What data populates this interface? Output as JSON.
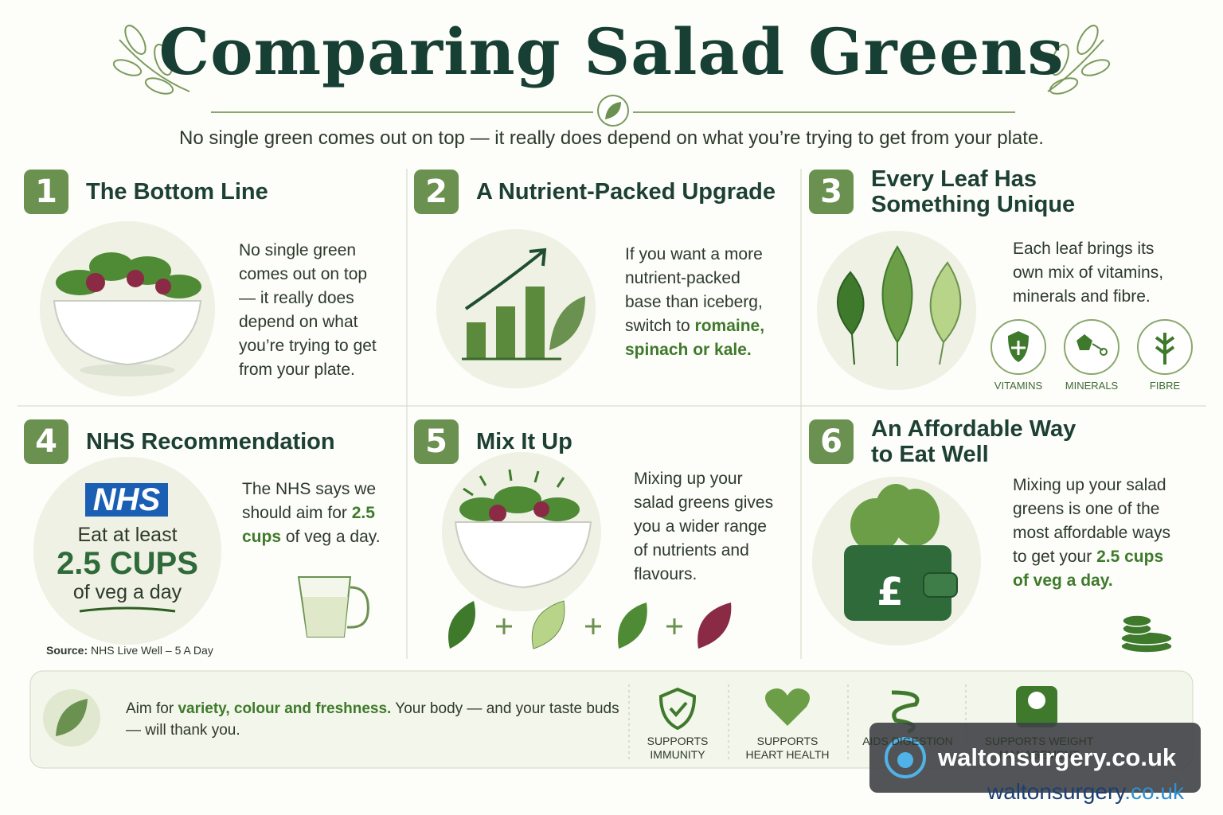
{
  "header": {
    "title": "Comparing Salad Greens",
    "subtitle": "No single green comes out on top — it really does depend on what you’re trying to get from your plate."
  },
  "sections": [
    {
      "number": "1",
      "heading": "The Bottom Line",
      "body": [
        {
          "text": "No single green comes out on top — it really does depend on what you’re trying to get from your plate.",
          "strong": false
        }
      ]
    },
    {
      "number": "2",
      "heading": "A Nutrient-Packed Upgrade",
      "body": [
        {
          "text": "If you want a more nutrient-packed base than iceberg, switch to",
          "strong": false
        },
        {
          "text": "romaine, spinach or kale.",
          "strong": true
        }
      ]
    },
    {
      "number": "3",
      "heading": "Every Leaf Has Something Unique",
      "body": [
        {
          "text": "Each leaf brings its own mix of vitamins, minerals and fibre.",
          "strong": false
        }
      ]
    },
    {
      "number": "4",
      "heading": "NHS Recommendation",
      "body": [
        {
          "text": "The NHS says we should aim for",
          "strong": false
        },
        {
          "text": "2.5 cups",
          "strong": true
        },
        {
          "text": "of veg a day.",
          "strong": false
        }
      ]
    },
    {
      "number": "5",
      "heading": "Mix It Up",
      "body": [
        {
          "text": "Mixing up your salad greens gives you a wider range of nutrients and flavours.",
          "strong": false
        }
      ]
    },
    {
      "number": "6",
      "heading": "An Affordable Way to Eat Well",
      "body": [
        {
          "text": "Mixing up your salad greens is one of the most affordable ways to get your",
          "strong": false
        },
        {
          "text": "2.5 cups of veg a day.",
          "strong": true
        }
      ]
    }
  ],
  "nutrients": [
    "VITAMINS",
    "MINERALS",
    "FIBRE"
  ],
  "nhs": {
    "logo": "NHS",
    "line1": "Eat at least",
    "amount": "2.5 CUPS",
    "line2": "of veg a day",
    "source_label": "Source:",
    "source": "NHS Live Well – 5 A Day"
  },
  "footer": {
    "message": [
      {
        "text": "Aim for",
        "strong": false
      },
      {
        "text": "variety, colour and freshness.",
        "strong": true
      },
      {
        "text": "Your body — and your taste buds — will thank you.",
        "strong": false
      }
    ],
    "benefits": [
      "SUPPORTS IMMUNITY",
      "SUPPORTS HEART HEALTH",
      "AIDS DIGESTION",
      "SUPPORTS WEIGHT MANAGEMENT"
    ]
  },
  "watermark": {
    "banner": "waltonsurgery.co.uk",
    "logo": [
      {
        "text": "walton",
        "color": "#1d3f73"
      },
      {
        "text": "surgery",
        "color": "#1d3f73"
      },
      {
        "text": ".co.uk",
        "color": "#2f8fd0"
      }
    ]
  }
}
